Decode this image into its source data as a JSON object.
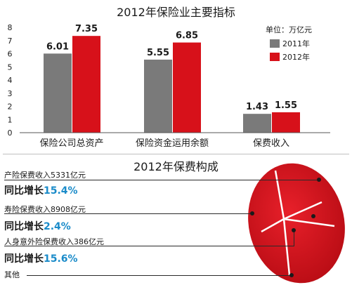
{
  "chart_data": [
    {
      "type": "bar",
      "title": "2012年保险业主要指标",
      "unit": "单位：万亿元",
      "categories": [
        "保险公司总资产",
        "保险资金运用余额",
        "保费收入"
      ],
      "series": [
        {
          "name": "2011年",
          "values": [
            6.01,
            5.55,
            1.43
          ],
          "labels": [
            "6.01",
            "5.55",
            "1.43"
          ],
          "color": "#7a7a7a"
        },
        {
          "name": "2012年",
          "values": [
            7.35,
            6.85,
            1.55
          ],
          "labels": [
            "7.35",
            "6.85",
            "1.55"
          ],
          "color": "#d7111a"
        }
      ],
      "yticks": [
        "0",
        "1",
        "2",
        "3",
        "4",
        "5",
        "6",
        "7",
        "8"
      ],
      "ylim": [
        0,
        8
      ],
      "grid": false,
      "legend_position": "top-right"
    },
    {
      "type": "pie",
      "title": "2012年保费构成",
      "slices": [
        {
          "label": "产险保费收入5331亿元",
          "value": 5331
        },
        {
          "label": "寿险保费收入8908亿元",
          "value": 8908
        },
        {
          "label": "人身意外险保费收入386亿元",
          "value": 386
        },
        {
          "label": "其他",
          "value": null
        }
      ],
      "color": "#d7111a"
    }
  ],
  "breakdown": [
    {
      "label": "产险保费收入5331亿元",
      "growth_prefix": "同比增长",
      "growth_value": "15.4%"
    },
    {
      "label": "寿险保费收入8908亿元",
      "growth_prefix": "同比增长",
      "growth_value": "2.4%"
    },
    {
      "label": "人身意外险保费收入386亿元",
      "growth_prefix": "同比增长",
      "growth_value": "15.6%"
    },
    {
      "label": "其他"
    }
  ]
}
